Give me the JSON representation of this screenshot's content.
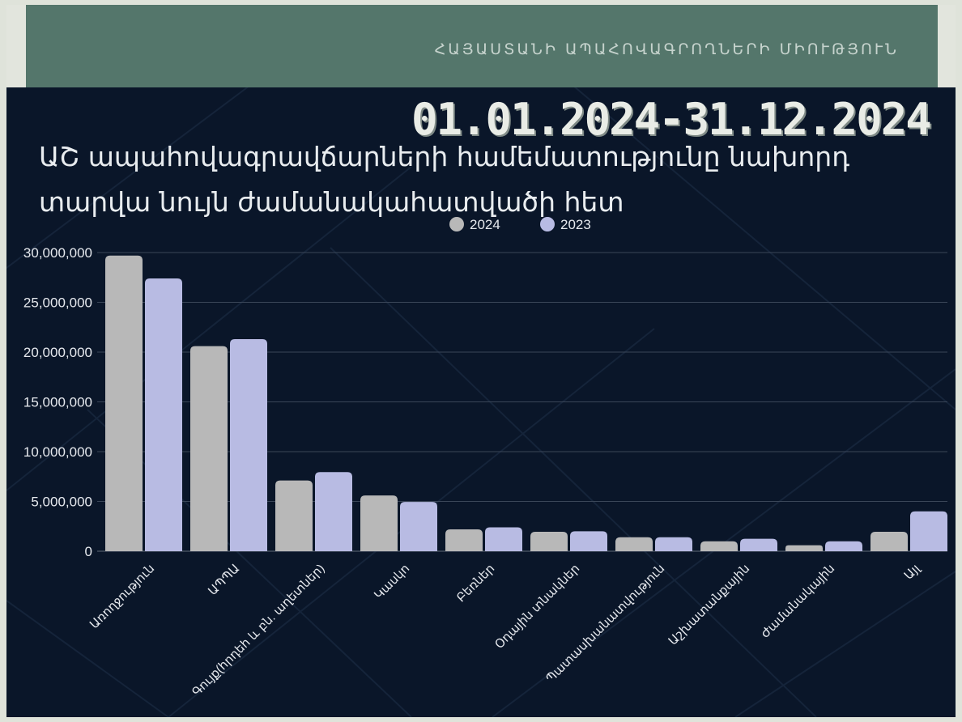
{
  "header": {
    "org_name": "ՀԱՅԱՍՏԱՆԻ ԱՊԱՀՈՎԱԳՐՈՂՆԵՐԻ ՄԻՈՒԹՅՈՒՆ"
  },
  "date_range": "01.01.2024-31.12.2024",
  "title_line1": "ԱՇ ապահովագրավճարների համեմատությունը նախորդ",
  "title_line2": "տարվա նույն ժամանակահատվածի հետ",
  "colors": {
    "series_2024": "#b8b8b8",
    "series_2023": "#b8bbe3",
    "header": "#54766b",
    "background": "#0a1629"
  },
  "chart_data": {
    "type": "bar",
    "categories": [
      "Առողջություն",
      "ԱՊՊԱ",
      "Գույք(հրդեհ և բն. աղետներ)",
      "Կասկո",
      "Բեռներ",
      "Օդային տնակներ",
      "Պատասխանատվություն",
      "Աշխատանքային",
      "Ժամանակային",
      "Այլ"
    ],
    "series": [
      {
        "name": "2024",
        "values": [
          29700000,
          20600000,
          7100000,
          5600000,
          2200000,
          1950000,
          1400000,
          1000000,
          600000,
          1950000
        ]
      },
      {
        "name": "2023",
        "values": [
          27400000,
          21300000,
          7950000,
          4950000,
          2400000,
          2000000,
          1400000,
          1250000,
          1000000,
          4000000
        ]
      }
    ],
    "ylim": [
      0,
      30000000
    ],
    "yticks": [
      "0",
      "5,000,000",
      "10,000,000",
      "15,000,000",
      "20,000,000",
      "25,000,000",
      "30,000,000"
    ],
    "grid": true,
    "legend": "top-center"
  }
}
